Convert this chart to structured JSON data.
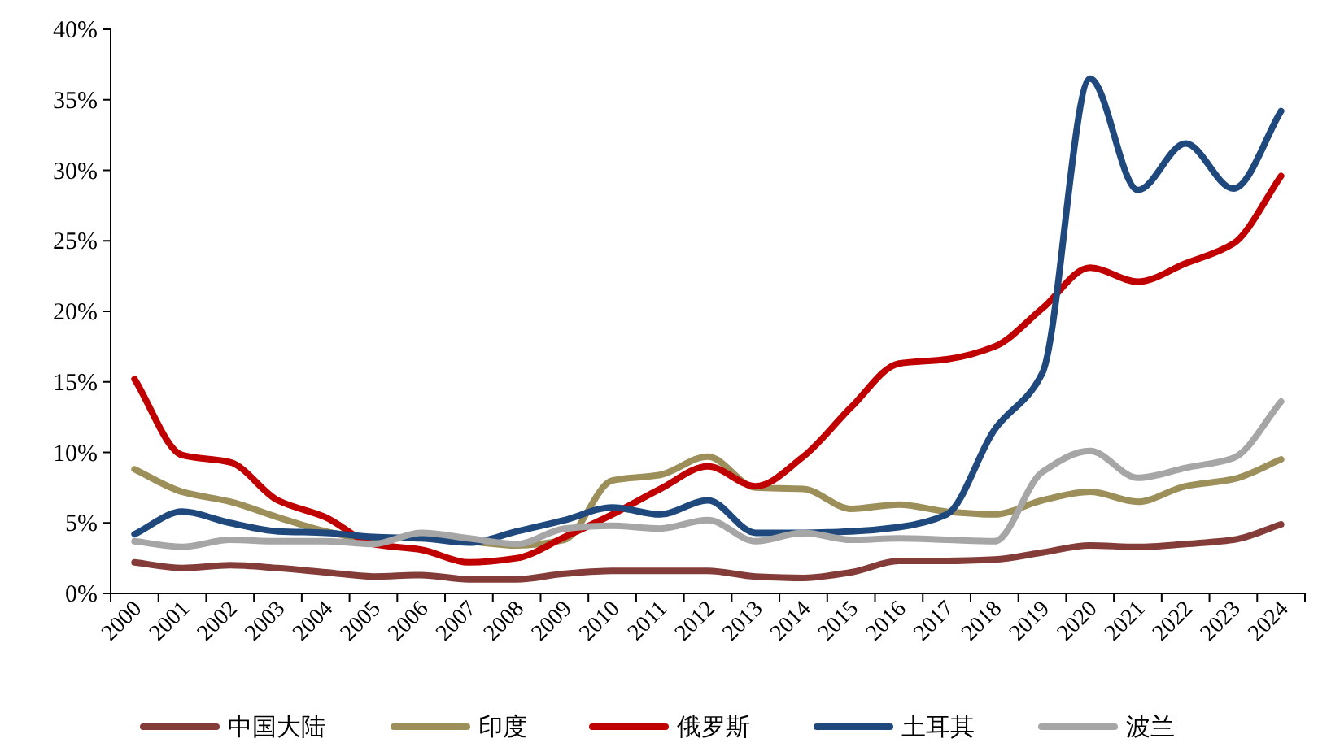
{
  "chart_data": {
    "type": "line",
    "categories": [
      "2000",
      "2001",
      "2002",
      "2003",
      "2004",
      "2005",
      "2006",
      "2007",
      "2008",
      "2009",
      "2010",
      "2011",
      "2012",
      "2013",
      "2014",
      "2015",
      "2016",
      "2017",
      "2018",
      "2019",
      "2020",
      "2021",
      "2022",
      "2023",
      "2024"
    ],
    "series": [
      {
        "name": "中国大陆",
        "color": "#843c39",
        "values": [
          2.2,
          1.8,
          2.0,
          1.8,
          1.5,
          1.2,
          1.3,
          1.0,
          1.0,
          1.4,
          1.6,
          1.6,
          1.6,
          1.2,
          1.1,
          1.5,
          2.3,
          2.3,
          2.4,
          2.9,
          3.4,
          3.3,
          3.5,
          3.8,
          4.9
        ]
      },
      {
        "name": "印度",
        "color": "#9c8f5a",
        "values": [
          8.8,
          7.2,
          6.5,
          5.4,
          4.4,
          3.8,
          4.0,
          3.7,
          3.4,
          3.8,
          8.0,
          8.4,
          9.7,
          7.5,
          7.4,
          6.0,
          6.3,
          5.8,
          5.6,
          6.6,
          7.2,
          6.5,
          7.6,
          8.1,
          9.5
        ]
      },
      {
        "name": "俄罗斯",
        "color": "#c00000",
        "values": [
          15.2,
          9.8,
          9.3,
          6.6,
          5.4,
          3.5,
          3.1,
          2.2,
          2.5,
          4.0,
          5.6,
          7.4,
          9.0,
          7.6,
          9.7,
          13.2,
          16.3,
          16.6,
          17.5,
          20.2,
          23.1,
          22.1,
          23.4,
          24.8,
          29.6
        ]
      },
      {
        "name": "土耳其",
        "color": "#1f497d",
        "values": [
          4.2,
          5.8,
          5.0,
          4.4,
          4.3,
          4.0,
          3.9,
          3.6,
          4.4,
          5.2,
          6.1,
          5.6,
          6.6,
          4.3,
          4.3,
          4.4,
          4.7,
          5.6,
          11.6,
          15.6,
          36.5,
          28.6,
          31.9,
          28.7,
          34.2
        ]
      },
      {
        "name": "波兰",
        "color": "#a6a6a6",
        "values": [
          3.7,
          3.3,
          3.8,
          3.7,
          3.7,
          3.5,
          4.3,
          3.9,
          3.5,
          4.6,
          4.8,
          4.6,
          5.2,
          3.7,
          4.3,
          3.8,
          3.9,
          3.8,
          3.7,
          8.6,
          10.1,
          8.2,
          8.9,
          9.6,
          13.6
        ]
      }
    ],
    "ylim": [
      0,
      40
    ],
    "yticks": [
      {
        "value": 0,
        "label": "0%"
      },
      {
        "value": 5,
        "label": "5%"
      },
      {
        "value": 10,
        "label": "10%"
      },
      {
        "value": 15,
        "label": "15%"
      },
      {
        "value": 20,
        "label": "20%"
      },
      {
        "value": 25,
        "label": "25%"
      },
      {
        "value": 30,
        "label": "30%"
      },
      {
        "value": 35,
        "label": "35%"
      },
      {
        "value": 40,
        "label": "40%"
      }
    ],
    "grid": false,
    "legend": "bottom",
    "line_style": "solid",
    "marker": "none"
  }
}
